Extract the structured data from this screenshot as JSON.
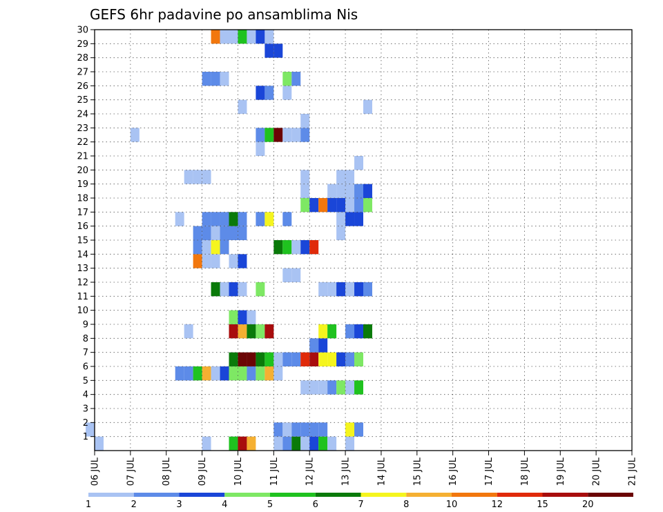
{
  "chart_data": {
    "type": "heatmap",
    "title": "GEFS 6hr padavine po ansamblima Nis",
    "xlabel": "",
    "ylabel": "",
    "x_ticks": [
      "06 JUL",
      "07 JUL",
      "08 JUL",
      "09 JUL",
      "10 JUL",
      "11 JUL",
      "12 JUL",
      "13 JUL",
      "14 JUL",
      "15 JUL",
      "16 JUL",
      "17 JUL",
      "18 JUL",
      "19 JUL",
      "20 JUL",
      "21 JUL"
    ],
    "y_ticks": [
      1,
      2,
      3,
      4,
      5,
      6,
      7,
      8,
      9,
      10,
      11,
      12,
      13,
      14,
      15,
      16,
      17,
      18,
      19,
      20,
      21,
      22,
      23,
      24,
      25,
      26,
      27,
      28,
      29,
      30
    ],
    "xlim": [
      "06 JUL 00Z",
      "21 JUL 00Z"
    ],
    "ylim": [
      0,
      30
    ],
    "steps_per_day": 4,
    "grid": true,
    "legend": {
      "placement": "bottom",
      "labels": [
        "1",
        "2",
        "3",
        "4",
        "5",
        "6",
        "7",
        "8",
        "10",
        "12",
        "15",
        "20"
      ],
      "colors": [
        "#a9c3f3",
        "#5d8be8",
        "#1a46d8",
        "#7ee864",
        "#1fc21f",
        "#0a7a0a",
        "#f5f51e",
        "#f5b032",
        "#f2770d",
        "#e02a0a",
        "#a80d0d",
        "#6b0505"
      ]
    },
    "cells": [
      [
        2,
        0,
        "#a9c3f3"
      ],
      [
        1,
        1,
        "#a9c3f3"
      ],
      [
        1,
        13,
        "#a9c3f3"
      ],
      [
        1,
        16,
        "#1fc21f"
      ],
      [
        1,
        17,
        "#a80d0d"
      ],
      [
        1,
        18,
        "#f5b032"
      ],
      [
        1,
        21,
        "#a9c3f3"
      ],
      [
        1,
        22,
        "#5d8be8"
      ],
      [
        1,
        23,
        "#0a7a0a"
      ],
      [
        1,
        24,
        "#a9c3f3"
      ],
      [
        1,
        25,
        "#1a46d8"
      ],
      [
        1,
        26,
        "#1fc21f"
      ],
      [
        1,
        27,
        "#a9c3f3"
      ],
      [
        1,
        29,
        "#a9c3f3"
      ],
      [
        2,
        21,
        "#5d8be8"
      ],
      [
        2,
        22,
        "#a9c3f3"
      ],
      [
        2,
        23,
        "#5d8be8"
      ],
      [
        2,
        24,
        "#5d8be8"
      ],
      [
        2,
        25,
        "#5d8be8"
      ],
      [
        2,
        26,
        "#5d8be8"
      ],
      [
        2,
        29,
        "#f5f51e"
      ],
      [
        2,
        30,
        "#5d8be8"
      ],
      [
        5,
        24,
        "#a9c3f3"
      ],
      [
        5,
        25,
        "#a9c3f3"
      ],
      [
        5,
        26,
        "#a9c3f3"
      ],
      [
        5,
        27,
        "#5d8be8"
      ],
      [
        5,
        28,
        "#7ee864"
      ],
      [
        5,
        29,
        "#a9c3f3"
      ],
      [
        5,
        30,
        "#1fc21f"
      ],
      [
        6,
        10,
        "#5d8be8"
      ],
      [
        6,
        11,
        "#5d8be8"
      ],
      [
        6,
        12,
        "#1fc21f"
      ],
      [
        6,
        13,
        "#f5b032"
      ],
      [
        6,
        14,
        "#a9c3f3"
      ],
      [
        6,
        15,
        "#1a46d8"
      ],
      [
        6,
        16,
        "#7ee864"
      ],
      [
        6,
        17,
        "#7ee864"
      ],
      [
        6,
        18,
        "#5d8be8"
      ],
      [
        6,
        19,
        "#7ee864"
      ],
      [
        6,
        20,
        "#f5b032"
      ],
      [
        6,
        21,
        "#a9c3f3"
      ],
      [
        7,
        16,
        "#0a7a0a"
      ],
      [
        7,
        17,
        "#6b0505"
      ],
      [
        7,
        18,
        "#6b0505"
      ],
      [
        7,
        19,
        "#0a7a0a"
      ],
      [
        7,
        20,
        "#1fc21f"
      ],
      [
        7,
        21,
        "#a9c3f3"
      ],
      [
        7,
        22,
        "#5d8be8"
      ],
      [
        7,
        23,
        "#5d8be8"
      ],
      [
        7,
        24,
        "#e02a0a"
      ],
      [
        7,
        25,
        "#a80d0d"
      ],
      [
        7,
        26,
        "#f5f51e"
      ],
      [
        7,
        27,
        "#f5f51e"
      ],
      [
        7,
        28,
        "#1a46d8"
      ],
      [
        7,
        29,
        "#5d8be8"
      ],
      [
        7,
        30,
        "#7ee864"
      ],
      [
        8,
        25,
        "#5d8be8"
      ],
      [
        8,
        26,
        "#1a46d8"
      ],
      [
        9,
        11,
        "#a9c3f3"
      ],
      [
        9,
        16,
        "#a80d0d"
      ],
      [
        9,
        17,
        "#f5b032"
      ],
      [
        9,
        18,
        "#0a7a0a"
      ],
      [
        9,
        19,
        "#7ee864"
      ],
      [
        9,
        20,
        "#a80d0d"
      ],
      [
        9,
        26,
        "#f5f51e"
      ],
      [
        9,
        27,
        "#1fc21f"
      ],
      [
        9,
        29,
        "#5d8be8"
      ],
      [
        9,
        30,
        "#1a46d8"
      ],
      [
        9,
        31,
        "#0a7a0a"
      ],
      [
        10,
        16,
        "#7ee864"
      ],
      [
        10,
        17,
        "#1a46d8"
      ],
      [
        10,
        18,
        "#a9c3f3"
      ],
      [
        12,
        14,
        "#0a7a0a"
      ],
      [
        12,
        15,
        "#a9c3f3"
      ],
      [
        12,
        16,
        "#1a46d8"
      ],
      [
        12,
        17,
        "#a9c3f3"
      ],
      [
        12,
        19,
        "#7ee864"
      ],
      [
        12,
        26,
        "#a9c3f3"
      ],
      [
        12,
        27,
        "#a9c3f3"
      ],
      [
        12,
        28,
        "#1a46d8"
      ],
      [
        12,
        29,
        "#a9c3f3"
      ],
      [
        12,
        30,
        "#1a46d8"
      ],
      [
        12,
        31,
        "#5d8be8"
      ],
      [
        13,
        22,
        "#a9c3f3"
      ],
      [
        13,
        23,
        "#a9c3f3"
      ],
      [
        14,
        12,
        "#f2770d"
      ],
      [
        14,
        13,
        "#a9c3f3"
      ],
      [
        14,
        14,
        "#a9c3f3"
      ],
      [
        14,
        16,
        "#a9c3f3"
      ],
      [
        14,
        17,
        "#1a46d8"
      ],
      [
        15,
        12,
        "#5d8be8"
      ],
      [
        15,
        13,
        "#a9c3f3"
      ],
      [
        15,
        14,
        "#f5f51e"
      ],
      [
        15,
        15,
        "#5d8be8"
      ],
      [
        15,
        21,
        "#0a7a0a"
      ],
      [
        15,
        22,
        "#1fc21f"
      ],
      [
        15,
        23,
        "#a9c3f3"
      ],
      [
        15,
        24,
        "#1a46d8"
      ],
      [
        15,
        25,
        "#e02a0a"
      ],
      [
        16,
        12,
        "#5d8be8"
      ],
      [
        16,
        13,
        "#5d8be8"
      ],
      [
        16,
        14,
        "#a9c3f3"
      ],
      [
        16,
        15,
        "#5d8be8"
      ],
      [
        16,
        16,
        "#5d8be8"
      ],
      [
        16,
        17,
        "#5d8be8"
      ],
      [
        16,
        28,
        "#a9c3f3"
      ],
      [
        17,
        10,
        "#a9c3f3"
      ],
      [
        17,
        13,
        "#5d8be8"
      ],
      [
        17,
        14,
        "#5d8be8"
      ],
      [
        17,
        15,
        "#5d8be8"
      ],
      [
        17,
        16,
        "#0a7a0a"
      ],
      [
        17,
        17,
        "#5d8be8"
      ],
      [
        17,
        19,
        "#5d8be8"
      ],
      [
        17,
        20,
        "#f5f51e"
      ],
      [
        17,
        22,
        "#5d8be8"
      ],
      [
        17,
        28,
        "#a9c3f3"
      ],
      [
        17,
        29,
        "#1a46d8"
      ],
      [
        17,
        30,
        "#1a46d8"
      ],
      [
        18,
        24,
        "#7ee864"
      ],
      [
        18,
        25,
        "#1a46d8"
      ],
      [
        18,
        26,
        "#f2770d"
      ],
      [
        18,
        27,
        "#1a46d8"
      ],
      [
        18,
        28,
        "#1a46d8"
      ],
      [
        18,
        29,
        "#a9c3f3"
      ],
      [
        18,
        30,
        "#5d8be8"
      ],
      [
        18,
        31,
        "#7ee864"
      ],
      [
        19,
        24,
        "#a9c3f3"
      ],
      [
        19,
        27,
        "#a9c3f3"
      ],
      [
        19,
        28,
        "#a9c3f3"
      ],
      [
        19,
        29,
        "#a9c3f3"
      ],
      [
        19,
        30,
        "#5d8be8"
      ],
      [
        19,
        31,
        "#1a46d8"
      ],
      [
        20,
        11,
        "#a9c3f3"
      ],
      [
        20,
        12,
        "#a9c3f3"
      ],
      [
        20,
        13,
        "#a9c3f3"
      ],
      [
        20,
        24,
        "#a9c3f3"
      ],
      [
        20,
        28,
        "#a9c3f3"
      ],
      [
        20,
        29,
        "#a9c3f3"
      ],
      [
        21,
        30,
        "#a9c3f3"
      ],
      [
        22,
        19,
        "#a9c3f3"
      ],
      [
        23,
        5,
        "#a9c3f3"
      ],
      [
        23,
        19,
        "#5d8be8"
      ],
      [
        23,
        20,
        "#1fc21f"
      ],
      [
        23,
        21,
        "#6b0505"
      ],
      [
        23,
        22,
        "#a9c3f3"
      ],
      [
        23,
        23,
        "#a9c3f3"
      ],
      [
        23,
        24,
        "#5d8be8"
      ],
      [
        24,
        24,
        "#a9c3f3"
      ],
      [
        25,
        17,
        "#a9c3f3"
      ],
      [
        25,
        31,
        "#a9c3f3"
      ],
      [
        26,
        19,
        "#1a46d8"
      ],
      [
        26,
        20,
        "#5d8be8"
      ],
      [
        26,
        22,
        "#a9c3f3"
      ],
      [
        27,
        13,
        "#5d8be8"
      ],
      [
        27,
        14,
        "#5d8be8"
      ],
      [
        27,
        15,
        "#a9c3f3"
      ],
      [
        27,
        22,
        "#7ee864"
      ],
      [
        27,
        23,
        "#5d8be8"
      ],
      [
        29,
        20,
        "#1a46d8"
      ],
      [
        29,
        21,
        "#1a46d8"
      ],
      [
        30,
        14,
        "#f2770d"
      ],
      [
        30,
        15,
        "#a9c3f3"
      ],
      [
        30,
        16,
        "#a9c3f3"
      ],
      [
        30,
        17,
        "#1fc21f"
      ],
      [
        30,
        18,
        "#a9c3f3"
      ],
      [
        30,
        19,
        "#1a46d8"
      ],
      [
        30,
        20,
        "#a9c3f3"
      ]
    ]
  }
}
